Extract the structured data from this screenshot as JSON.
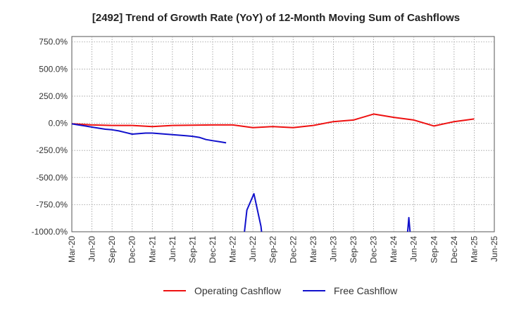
{
  "chart_data": {
    "type": "line",
    "title": "[2492]  Trend of Growth Rate (YoY) of 12-Month Moving Sum of Cashflows",
    "xlabel": "",
    "ylabel": "",
    "ylim": [
      -1000,
      800
    ],
    "grid": true,
    "legend_position": "bottom",
    "y_ticks": [
      750,
      500,
      250,
      0,
      -250,
      -500,
      -750,
      -1000
    ],
    "y_tick_labels": [
      "750.0%",
      "500.0%",
      "250.0%",
      "0.0%",
      "-250.0%",
      "-500.0%",
      "-750.0%",
      "-1000.0%"
    ],
    "x_tick_labels": [
      "Mar-20",
      "Jun-20",
      "Sep-20",
      "Dec-20",
      "Mar-21",
      "Jun-21",
      "Sep-21",
      "Dec-21",
      "Mar-22",
      "Jun-22",
      "Sep-22",
      "Dec-22",
      "Mar-23",
      "Jun-23",
      "Sep-23",
      "Dec-23",
      "Mar-24",
      "Jun-24",
      "Sep-24",
      "Dec-24",
      "Mar-25",
      "Jun-25"
    ],
    "series": [
      {
        "name": "Operating Cashflow",
        "color": "#ee1111",
        "x": [
          "Mar-20",
          "Jun-20",
          "Sep-20",
          "Dec-20",
          "Mar-21",
          "Jun-21",
          "Sep-21",
          "Dec-21",
          "Mar-22",
          "Jun-22",
          "Sep-22",
          "Dec-22",
          "Mar-23",
          "Jun-23",
          "Sep-23",
          "Dec-23",
          "Mar-24",
          "Jun-24",
          "Sep-24",
          "Dec-24",
          "Mar-25"
        ],
        "values": [
          -5,
          -15,
          -20,
          -20,
          -30,
          -20,
          -18,
          -15,
          -15,
          -40,
          -30,
          -40,
          -20,
          15,
          30,
          85,
          55,
          30,
          -25,
          15,
          40
        ]
      },
      {
        "name": "Free Cashflow",
        "color": "#1111cc",
        "segments": [
          {
            "x": [
              0,
              0.333,
              0.667,
              1,
              1.333,
              1.667,
              2,
              2.333,
              2.667,
              3,
              3.333,
              3.667,
              4,
              4.333,
              4.667,
              5,
              5.333,
              5.667,
              6,
              6.333,
              6.667,
              7,
              7.333,
              7.667
            ],
            "values": [
              -5,
              -15,
              -25,
              -35,
              -45,
              -55,
              -60,
              -70,
              -85,
              -100,
              -95,
              -90,
              -90,
              -95,
              -100,
              -105,
              -110,
              -115,
              -120,
              -130,
              -150,
              -160,
              -170,
              -180
            ]
          },
          {
            "x": [
              8.1,
              8.55,
              8.7,
              9.05,
              9.4,
              9.55
            ],
            "values": [
              -1200,
              -1050,
              -800,
              -650,
              -950,
              -1200
            ]
          },
          {
            "x": [
              16.6,
              16.75,
              16.9
            ],
            "values": [
              -1200,
              -870,
              -1200
            ]
          }
        ]
      }
    ]
  }
}
